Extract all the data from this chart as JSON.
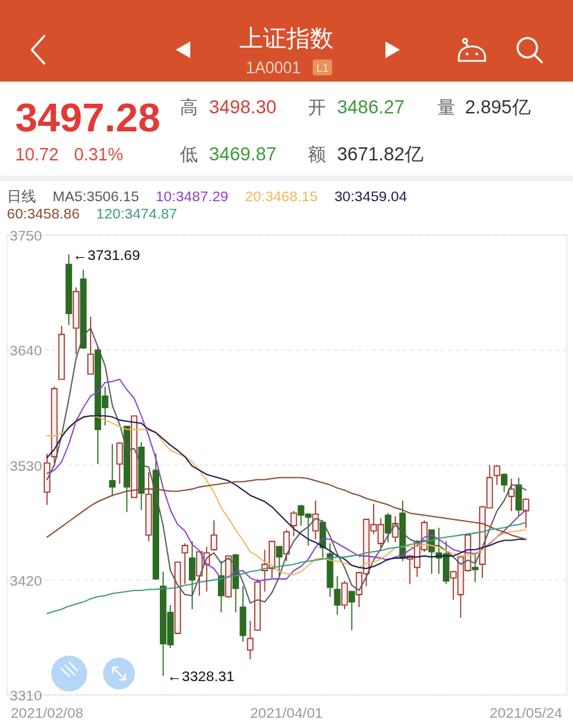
{
  "chart_data": {
    "type": "candlestick",
    "title": "上证指数",
    "subtitle": "1A0001",
    "legend_title": "日线",
    "categories": [
      "2021/02/08",
      null,
      null,
      null,
      null,
      null,
      null,
      null,
      null,
      null,
      null,
      null,
      null,
      null,
      null,
      null,
      null,
      null,
      null,
      null,
      null,
      null,
      null,
      null,
      null,
      null,
      null,
      null,
      null,
      null,
      null,
      null,
      null,
      "2021/04/01",
      null,
      null,
      null,
      null,
      null,
      null,
      null,
      null,
      null,
      null,
      null,
      null,
      null,
      null,
      null,
      null,
      null,
      null,
      null,
      null,
      null,
      null,
      null,
      null,
      null,
      null,
      null,
      null,
      null,
      null,
      null,
      null,
      "2021/05/24"
    ],
    "ohlc": [
      [
        3504,
        3541,
        3492,
        3532
      ],
      [
        3538,
        3605,
        3532,
        3603
      ],
      [
        3612,
        3663,
        3612,
        3655
      ],
      [
        3722,
        3731.69,
        3664,
        3675
      ],
      [
        3661,
        3700,
        3636,
        3696
      ],
      [
        3708,
        3717,
        3641,
        3642
      ],
      [
        3617,
        3672,
        3617,
        3636
      ],
      [
        3640,
        3644,
        3531,
        3564
      ],
      [
        3596,
        3605,
        3568,
        3585
      ],
      [
        3515,
        3550,
        3500,
        3509
      ],
      [
        3531,
        3552,
        3512,
        3551
      ],
      [
        3567,
        3567,
        3485,
        3509
      ],
      [
        3499,
        3577,
        3499,
        3577
      ],
      [
        3547,
        3552,
        3487,
        3503
      ],
      [
        3463,
        3523,
        3457,
        3502
      ],
      [
        3525,
        3541,
        3420,
        3421
      ],
      [
        3414,
        3428,
        3328.31,
        3359
      ],
      [
        3389,
        3396,
        3355,
        3358
      ],
      [
        3369,
        3437,
        3368,
        3437
      ],
      [
        3446,
        3455,
        3416,
        3453
      ],
      [
        3441,
        3457,
        3392,
        3420
      ],
      [
        3424,
        3447,
        3405,
        3447
      ],
      [
        3435,
        3452,
        3409,
        3446
      ],
      [
        3449,
        3477,
        3448,
        3463
      ],
      [
        3424,
        3438,
        3389,
        3405
      ],
      [
        3404,
        3443,
        3403,
        3443
      ],
      [
        3444,
        3445,
        3389,
        3412
      ],
      [
        3394,
        3414,
        3361,
        3367
      ],
      [
        3353,
        3381,
        3344,
        3364
      ],
      [
        3372,
        3421,
        3372,
        3418
      ],
      [
        3429,
        3449,
        3409,
        3435
      ],
      [
        3431,
        3457,
        3422,
        3457
      ],
      [
        3452,
        3452,
        3424,
        3442
      ],
      [
        3445,
        3468,
        3438,
        3466
      ],
      [
        3472,
        3486,
        3462,
        3484
      ],
      [
        3491,
        3492,
        3472,
        3482
      ],
      [
        3483,
        3484,
        3453,
        3480
      ],
      [
        3467,
        3496,
        3459,
        3483
      ],
      [
        3475,
        3477,
        3441,
        3451
      ],
      [
        3445,
        3455,
        3404,
        3413
      ],
      [
        3411,
        3424,
        3387,
        3396
      ],
      [
        3396,
        3419,
        3392,
        3417
      ],
      [
        3409,
        3409,
        3372,
        3399
      ],
      [
        3406,
        3428,
        3394,
        3427
      ],
      [
        3426,
        3478,
        3414,
        3478
      ],
      [
        3467,
        3493,
        3464,
        3473
      ],
      [
        3455,
        3479,
        3451,
        3473
      ],
      [
        3482,
        3484,
        3456,
        3465
      ],
      [
        3461,
        3481,
        3456,
        3474
      ],
      [
        3484,
        3496,
        3438,
        3441
      ],
      [
        3440,
        3444,
        3416,
        3443
      ],
      [
        3432,
        3458,
        3423,
        3457
      ],
      [
        3449,
        3477,
        3447,
        3475
      ],
      [
        3468,
        3468,
        3426,
        3447
      ],
      [
        3446,
        3470,
        3426,
        3441
      ],
      [
        3445,
        3457,
        3416,
        3419
      ],
      [
        3422,
        3428,
        3401,
        3428
      ],
      [
        3406,
        3442,
        3384,
        3442
      ],
      [
        3429,
        3464,
        3428,
        3463
      ],
      [
        3432,
        3446,
        3418,
        3430
      ],
      [
        3435,
        3491,
        3422,
        3490
      ],
      [
        3489,
        3530,
        3489,
        3518
      ],
      [
        3520,
        3530,
        3511,
        3529
      ],
      [
        3521,
        3522,
        3504,
        3511
      ],
      [
        3500,
        3517,
        3486,
        3507
      ],
      [
        3511,
        3518,
        3481,
        3487
      ],
      [
        3486.27,
        3498.3,
        3469.87,
        3497.28
      ]
    ],
    "series": [
      {
        "name": "MA5:3506.15",
        "type": "line",
        "color": "#595959",
        "values": [
          3516,
          3530,
          3558,
          3593,
          3632,
          3654,
          3661,
          3643,
          3625,
          3587,
          3569,
          3544,
          3546,
          3530,
          3528,
          3502,
          3472,
          3429,
          3415,
          3406,
          3405,
          3423,
          3441,
          3446,
          3436,
          3441,
          3434,
          3418,
          3398,
          3401,
          3399,
          3408,
          3423,
          3444,
          3457,
          3466,
          3471,
          3479,
          3476,
          3462,
          3445,
          3432,
          3415,
          3410,
          3423,
          3439,
          3450,
          3463,
          3473,
          3465,
          3459,
          3456,
          3458,
          3453,
          3453,
          3448,
          3442,
          3435,
          3439,
          3436,
          3451,
          3469,
          3486,
          3496,
          3511,
          3510,
          3506
        ]
      },
      {
        "name": "10:3487.29",
        "type": "line",
        "color": "#9040cc",
        "values": [
          3522,
          3525,
          3533,
          3550,
          3572,
          3585,
          3596,
          3600,
          3609,
          3610,
          3612,
          3602,
          3594,
          3577,
          3558,
          3536,
          3508,
          3487,
          3473,
          3467,
          3454,
          3448,
          3435,
          3431,
          3421,
          3423,
          3428,
          3429,
          3422,
          3419,
          3420,
          3421,
          3421,
          3421,
          3429,
          3433,
          3440,
          3451,
          3460,
          3459,
          3455,
          3451,
          3447,
          3443,
          3443,
          3442,
          3441,
          3439,
          3442,
          3444,
          3449,
          3453,
          3461,
          3463,
          3459,
          3454,
          3449,
          3447,
          3446,
          3445,
          3449,
          3455,
          3461,
          3467,
          3474,
          3481,
          3487
        ]
      },
      {
        "name": "20:3468.15",
        "type": "line",
        "color": "#eeb85e",
        "values": [
          3558,
          3558,
          3560,
          3565,
          3571,
          3575,
          3577,
          3576,
          3573,
          3570,
          3567,
          3564,
          3564,
          3564,
          3565,
          3561,
          3552,
          3544,
          3541,
          3538,
          3533,
          3525,
          3515,
          3504,
          3489,
          3479,
          3468,
          3458,
          3447,
          3443,
          3437,
          3434,
          3428,
          3426,
          3425,
          3428,
          3434,
          3440,
          3441,
          3439,
          3438,
          3436,
          3434,
          3432,
          3436,
          3437,
          3440,
          3445,
          3451,
          3452,
          3452,
          3452,
          3454,
          3453,
          3451,
          3448,
          3445,
          3443,
          3444,
          3444,
          3449,
          3454,
          3461,
          3465,
          3466,
          3467,
          3468
        ]
      },
      {
        "name": "30:3459.04",
        "type": "line",
        "color": "#1c1a52",
        "values": [
          3537,
          3545,
          3557,
          3566,
          3572,
          3576,
          3577,
          3577,
          3577,
          3576,
          3573,
          3572,
          3571,
          3570,
          3564,
          3561,
          3555,
          3549,
          3544,
          3538,
          3529,
          3525,
          3521,
          3519,
          3517,
          3515,
          3511,
          3506,
          3501,
          3498,
          3495,
          3490,
          3483,
          3476,
          3469,
          3464,
          3459,
          3456,
          3452,
          3448,
          3443,
          3440,
          3434,
          3432,
          3431,
          3433,
          3436,
          3440,
          3441,
          3441,
          3442,
          3442,
          3443,
          3442,
          3443,
          3443,
          3443,
          3446,
          3449,
          3449,
          3451,
          3453,
          3456,
          3458,
          3458,
          3459,
          3459
        ]
      },
      {
        "name": "60:3458.86",
        "type": "line",
        "color": "#8a4a2e",
        "values": [
          3461,
          3466,
          3471,
          3476,
          3481,
          3486,
          3491,
          3495,
          3498,
          3501,
          3503,
          3505,
          3506,
          3507,
          3507,
          3507,
          3506,
          3505,
          3505,
          3506,
          3507,
          3509,
          3510,
          3511,
          3512,
          3513,
          3514,
          3514,
          3515,
          3516,
          3516,
          3517,
          3518,
          3518,
          3518,
          3518,
          3517,
          3515,
          3513,
          3511,
          3508,
          3506,
          3503,
          3501,
          3498,
          3496,
          3494,
          3492,
          3489,
          3487,
          3484,
          3483,
          3482,
          3481,
          3480,
          3479,
          3478,
          3477,
          3476,
          3475,
          3474,
          3471,
          3468,
          3466,
          3463,
          3461,
          3459
        ]
      },
      {
        "name": "120:3474.87",
        "type": "line",
        "color": "#3f9a80",
        "values": [
          3388,
          3390,
          3392,
          3395,
          3397,
          3399,
          3402,
          3404,
          3405,
          3407,
          3408,
          3409,
          3410,
          3410,
          3411,
          3411,
          3412,
          3412,
          3413,
          3415,
          3416,
          3418,
          3419,
          3420,
          3421,
          3423,
          3424,
          3426,
          3428,
          3429,
          3431,
          3432,
          3433,
          3434,
          3435,
          3437,
          3438,
          3439,
          3440,
          3441,
          3442,
          3442,
          3443,
          3444,
          3446,
          3447,
          3448,
          3450,
          3451,
          3452,
          3454,
          3455,
          3457,
          3458,
          3460,
          3461,
          3462,
          3463,
          3464,
          3465,
          3466,
          3468,
          3469,
          3470,
          3472,
          3473,
          3475
        ]
      }
    ],
    "ylim": [
      3310,
      3750
    ],
    "yticks": [
      3310,
      3420,
      3530,
      3640,
      3750
    ],
    "grid": "y",
    "legend": "top left",
    "annotations": [
      "L1",
      "3497.28",
      "10.72",
      "0.31%",
      "高",
      "3498.30",
      "开",
      "3486.27",
      "量",
      "2.895亿",
      "低",
      "3469.87",
      "额",
      "3671.82亿",
      "←3731.69",
      "←3328.31"
    ]
  }
}
